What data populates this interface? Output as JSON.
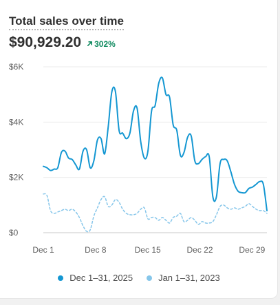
{
  "header": {
    "title": "Total sales over time",
    "total": "$90,929.20",
    "change": "302%"
  },
  "colors": {
    "current": "#1497d2",
    "previous": "#86c6ea",
    "positive": "#0f8a5f"
  },
  "chart_data": {
    "type": "line",
    "title": "Total sales over time",
    "xlabel": "",
    "ylabel": "",
    "x_ticks": [
      "Dec 1",
      "Dec 8",
      "Dec 15",
      "Dec 22",
      "Dec 29"
    ],
    "y_ticks": [
      "$0",
      "$2K",
      "$4K",
      "$6K"
    ],
    "ylim": [
      0,
      6000
    ],
    "grid": true,
    "legend_position": "bottom",
    "series": [
      {
        "name": "Dec 1–31, 2025",
        "style": "solid",
        "values": [
          2400,
          2350,
          2250,
          2300,
          2350,
          2900,
          2950,
          2700,
          2650,
          2450,
          2300,
          2950,
          3000,
          2350,
          2600,
          3350,
          3400,
          2850,
          3850,
          5100,
          5100,
          3700,
          3600,
          3400,
          3600,
          4400,
          4500,
          3300,
          2700,
          2950,
          4400,
          4600,
          5400,
          5600,
          5000,
          4900,
          3900,
          3700,
          2800,
          2900,
          3450,
          3500,
          2600,
          2500,
          2650,
          2750,
          2750,
          1300,
          1300,
          2500,
          2650,
          2600,
          2200,
          1750,
          1500,
          1450,
          1450,
          1600,
          1650,
          1750,
          1850,
          1750,
          800
        ]
      },
      {
        "name": "Jan 1–31, 2023",
        "style": "dashed",
        "values": [
          1400,
          1350,
          800,
          700,
          750,
          800,
          850,
          800,
          850,
          750,
          550,
          250,
          50,
          100,
          600,
          900,
          1200,
          1300,
          950,
          1000,
          1200,
          1100,
          850,
          700,
          650,
          650,
          700,
          850,
          900,
          500,
          550,
          550,
          450,
          550,
          450,
          350,
          550,
          600,
          700,
          400,
          450,
          550,
          450,
          300,
          400,
          350,
          350,
          400,
          650,
          950,
          1000,
          900,
          850,
          900,
          850,
          900,
          950,
          1050,
          950,
          850,
          800,
          800,
          700
        ]
      }
    ]
  }
}
